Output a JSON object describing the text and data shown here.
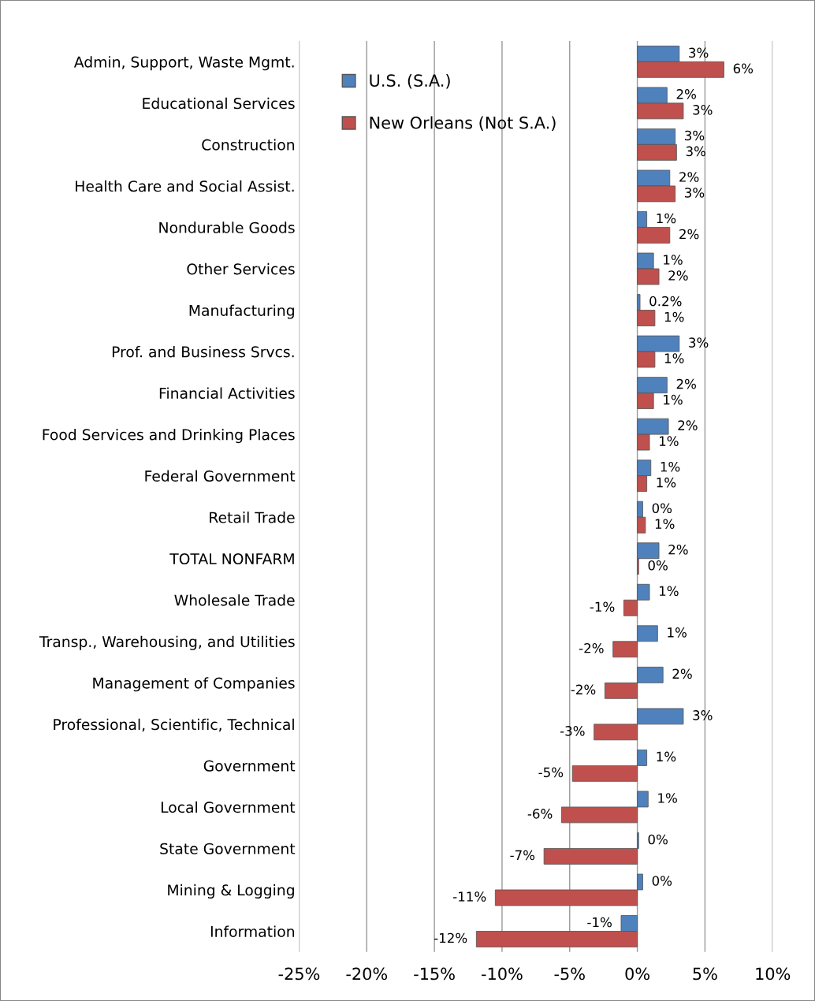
{
  "chart_data": {
    "type": "bar",
    "orientation": "horizontal",
    "categories": [
      "Admin, Support, Waste Mgmt.",
      "Educational Services",
      "Construction",
      "Health Care and Social Assist.",
      "Nondurable Goods",
      "Other Services",
      "Manufacturing",
      "Prof. and Business Srvcs.",
      "Financial Activities",
      "Food Services and Drinking Places",
      "Federal Government",
      "Retail Trade",
      "TOTAL NONFARM",
      "Wholesale Trade",
      "Transp., Warehousing, and Utilities",
      "Management of Companies",
      "Professional, Scientific, Technical",
      "Government",
      "Local Government",
      "State Government",
      "Mining & Logging",
      "Information"
    ],
    "series": [
      {
        "name": "U.S. (S.A.)",
        "color": "#4f81bd",
        "values": [
          3.1,
          2.2,
          2.8,
          2.4,
          0.7,
          1.2,
          0.2,
          3.1,
          2.2,
          2.3,
          1.0,
          0.4,
          1.6,
          0.9,
          1.5,
          1.9,
          3.4,
          0.7,
          0.8,
          0.1,
          0.4,
          -1.2
        ],
        "value_labels": [
          "3%",
          "2%",
          "3%",
          "2%",
          "1%",
          "1%",
          "0.2%",
          "3%",
          "2%",
          "2%",
          "1%",
          "0%",
          "2%",
          "1%",
          "1%",
          "2%",
          "3%",
          "1%",
          "1%",
          "0%",
          "0%",
          "-1%"
        ]
      },
      {
        "name": "New Orleans (Not S.A.)",
        "color": "#c0504d",
        "values": [
          6.4,
          3.4,
          2.9,
          2.8,
          2.4,
          1.6,
          1.3,
          1.3,
          1.2,
          0.9,
          0.7,
          0.6,
          0.1,
          -1.0,
          -1.8,
          -2.4,
          -3.2,
          -4.8,
          -5.6,
          -6.9,
          -10.5,
          -11.9
        ],
        "value_labels": [
          "6%",
          "3%",
          "3%",
          "3%",
          "2%",
          "2%",
          "1%",
          "1%",
          "1%",
          "1%",
          "1%",
          "1%",
          "0%",
          "-1%",
          "-2%",
          "-2%",
          "-3%",
          "-5%",
          "-6%",
          "-7%",
          "-11%",
          "-12%"
        ]
      }
    ],
    "xlim": [
      -25,
      10
    ],
    "xticks": [
      {
        "value": -25,
        "label": "-25%"
      },
      {
        "value": -20,
        "label": "-20%"
      },
      {
        "value": -15,
        "label": "-15%"
      },
      {
        "value": -10,
        "label": "-10%"
      },
      {
        "value": -5,
        "label": "-5%"
      },
      {
        "value": 0,
        "label": "0%"
      },
      {
        "value": 5,
        "label": "5%"
      },
      {
        "value": 10,
        "label": "10%"
      }
    ],
    "grid": "x",
    "legend": "top left"
  }
}
